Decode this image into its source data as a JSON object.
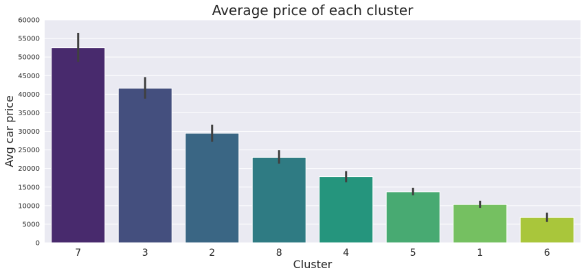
{
  "chart_data": {
    "type": "bar",
    "title": "Average price of each cluster",
    "xlabel": "Cluster",
    "ylabel": "Avg car price",
    "categories": [
      "7",
      "3",
      "2",
      "8",
      "4",
      "5",
      "1",
      "6"
    ],
    "values": [
      52500,
      41600,
      29500,
      23000,
      17800,
      13700,
      10300,
      6800
    ],
    "error_bars": [
      [
        48700,
        56500
      ],
      [
        38800,
        44600
      ],
      [
        27200,
        31800
      ],
      [
        21300,
        24900
      ],
      [
        16300,
        19300
      ],
      [
        12800,
        14800
      ],
      [
        9400,
        11300
      ],
      [
        5600,
        8100
      ]
    ],
    "ylim": [
      0,
      60000
    ],
    "yticks": [
      0,
      5000,
      10000,
      15000,
      20000,
      25000,
      30000,
      35000,
      40000,
      45000,
      50000,
      55000,
      60000
    ],
    "grid": true,
    "background": "#eaeaf2",
    "bar_colors": [
      "#482a6d",
      "#444f7e",
      "#3a6684",
      "#2f7b83",
      "#25957d",
      "#48aa72",
      "#75c061",
      "#a9c63b"
    ],
    "error_color": "#404040"
  }
}
